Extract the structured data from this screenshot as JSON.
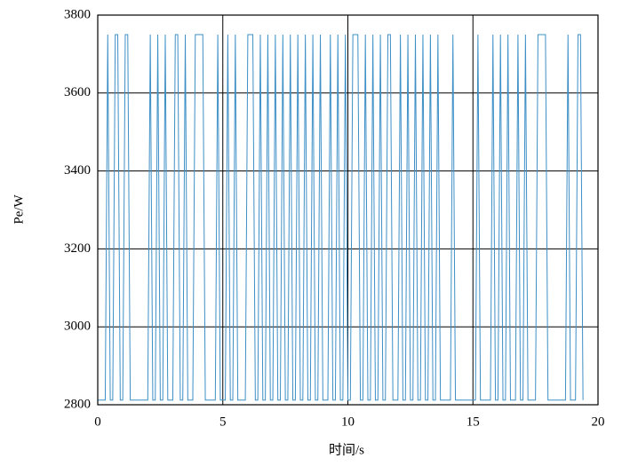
{
  "chart_data": {
    "type": "line",
    "xlabel": "时间/s",
    "ylabel": "Pe/W",
    "color": "#3d8fc6",
    "grid": true,
    "xlim": [
      0,
      20
    ],
    "xticks": [
      0,
      5,
      10,
      15,
      20
    ],
    "ylim": [
      2800,
      3800
    ],
    "yticks": [
      2800,
      3000,
      3200,
      3400,
      3600,
      3800
    ],
    "x": [
      0,
      0.1,
      0.2,
      0.3,
      0.4,
      0.5,
      0.6,
      0.7,
      0.8,
      0.9,
      1,
      1.1,
      1.2,
      1.3,
      1.4,
      1.5,
      1.6,
      1.7,
      1.8,
      1.9,
      2,
      2.1,
      2.2,
      2.3,
      2.4,
      2.5,
      2.6,
      2.7,
      2.8,
      2.9,
      3,
      3.1,
      3.2,
      3.3,
      3.4,
      3.5,
      3.6,
      3.7,
      3.8,
      3.9,
      4,
      4.1,
      4.2,
      4.3,
      4.4,
      4.5,
      4.6,
      4.7,
      4.8,
      4.9,
      5,
      5.1,
      5.2,
      5.3,
      5.4,
      5.5,
      5.6,
      5.7,
      5.8,
      5.9,
      6,
      6.1,
      6.2,
      6.3,
      6.4,
      6.5,
      6.6,
      6.7,
      6.8,
      6.9,
      7,
      7.1,
      7.2,
      7.3,
      7.4,
      7.5,
      7.6,
      7.7,
      7.8,
      7.9,
      8,
      8.1,
      8.2,
      8.3,
      8.4,
      8.5,
      8.6,
      8.7,
      8.8,
      8.9,
      9,
      9.1,
      9.2,
      9.3,
      9.4,
      9.5,
      9.6,
      9.7,
      9.8,
      9.9,
      10,
      10.1,
      10.2,
      10.3,
      10.4,
      10.5,
      10.6,
      10.7,
      10.8,
      10.9,
      11,
      11.1,
      11.2,
      11.3,
      11.4,
      11.5,
      11.6,
      11.7,
      11.8,
      11.9,
      12,
      12.1,
      12.2,
      12.3,
      12.4,
      12.5,
      12.6,
      12.7,
      12.8,
      12.9,
      13,
      13.1,
      13.2,
      13.3,
      13.4,
      13.5,
      13.6,
      13.7,
      13.8,
      13.9,
      14,
      14.1,
      14.2,
      14.3,
      14.4,
      14.5,
      14.6,
      14.7,
      14.8,
      14.9,
      15,
      15.1,
      15.2,
      15.3,
      15.4,
      15.5,
      15.6,
      15.7,
      15.8,
      15.9,
      16,
      16.1,
      16.2,
      16.3,
      16.4,
      16.5,
      16.6,
      16.7,
      16.8,
      16.9,
      17,
      17.1,
      17.2,
      17.3,
      17.4,
      17.5,
      17.6,
      17.7,
      17.8,
      17.9,
      18,
      18.1,
      18.2,
      18.3,
      18.4,
      18.5,
      18.6,
      18.7,
      18.8,
      18.9,
      19,
      19.1,
      19.2,
      19.3,
      19.4
    ],
    "values": [
      2812,
      2812,
      2812,
      2812,
      3750,
      2812,
      2812,
      3750,
      3750,
      2812,
      2812,
      3750,
      3750,
      2812,
      2812,
      2812,
      2812,
      2812,
      2812,
      2812,
      2812,
      3750,
      2812,
      2812,
      3750,
      2812,
      2812,
      3750,
      2812,
      2812,
      2812,
      3750,
      3750,
      2812,
      2812,
      3750,
      2812,
      2812,
      2812,
      3750,
      3750,
      3750,
      3750,
      2812,
      2812,
      2812,
      2812,
      2812,
      3750,
      2812,
      2812,
      2812,
      3750,
      2812,
      2812,
      3750,
      2812,
      2812,
      2812,
      2812,
      3750,
      3750,
      3750,
      2812,
      2812,
      3750,
      2812,
      2812,
      3750,
      2812,
      2812,
      3750,
      2812,
      2812,
      3750,
      2812,
      2812,
      3750,
      2812,
      2812,
      3750,
      2812,
      2812,
      3750,
      2812,
      2812,
      3750,
      2812,
      2812,
      3750,
      2812,
      2812,
      2812,
      3750,
      2812,
      2812,
      3750,
      2812,
      2812,
      3750,
      2812,
      2812,
      3750,
      3750,
      3750,
      2812,
      2812,
      3750,
      2812,
      2812,
      3750,
      2812,
      2812,
      3750,
      2812,
      2812,
      3750,
      3750,
      2812,
      2812,
      2812,
      3750,
      2812,
      2812,
      3750,
      2812,
      2812,
      3750,
      2812,
      2812,
      3750,
      2812,
      2812,
      3750,
      2812,
      2812,
      3750,
      2812,
      2812,
      2812,
      2812,
      2812,
      3750,
      2812,
      2812,
      2812,
      2812,
      2812,
      2812,
      2812,
      2812,
      2812,
      3750,
      2812,
      2812,
      2812,
      2812,
      2812,
      3750,
      2812,
      2812,
      3750,
      2812,
      2812,
      3750,
      2812,
      2812,
      2812,
      3750,
      2812,
      2812,
      3750,
      2812,
      2812,
      2812,
      2812,
      3750,
      3750,
      3750,
      3750,
      2812,
      2812,
      2812,
      2812,
      2812,
      2812,
      2812,
      2812,
      3750,
      2812,
      2812,
      2812,
      3750,
      3750,
      2812
    ]
  }
}
